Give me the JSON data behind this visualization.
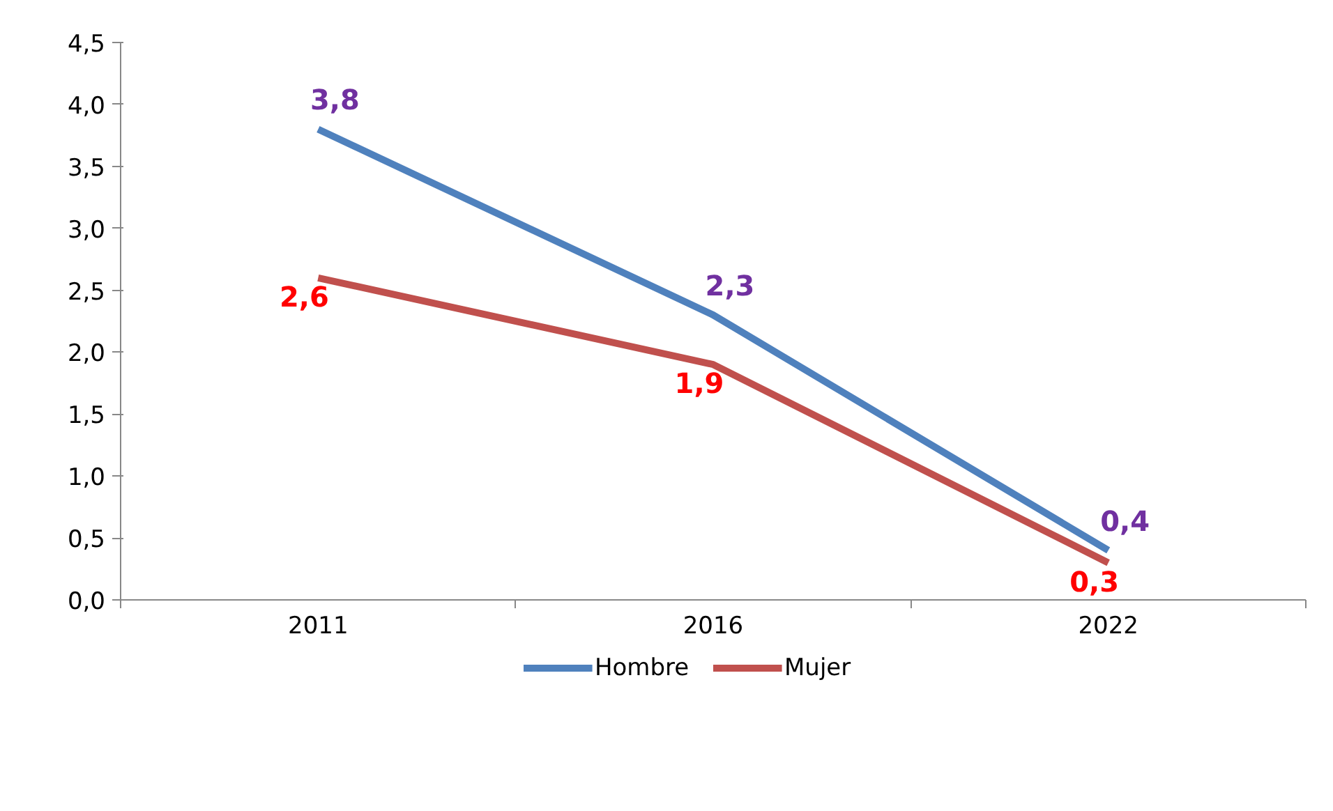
{
  "chart_data": {
    "type": "line",
    "categories": [
      "2011",
      "2016",
      "2022"
    ],
    "series": [
      {
        "name": "Hombre",
        "color": "#4f81bd",
        "values": [
          3.8,
          2.3,
          0.4
        ],
        "value_labels": [
          "3,8",
          "2,3",
          "0,4"
        ]
      },
      {
        "name": "Mujer",
        "color": "#c0504d",
        "values": [
          2.6,
          1.9,
          0.3
        ],
        "value_labels": [
          "2,6",
          "1,9",
          "0,3"
        ]
      }
    ],
    "ylim": [
      0,
      4.5
    ],
    "yticks": [
      {
        "value": 0,
        "label": "0,0"
      },
      {
        "value": 0.5,
        "label": "0,5"
      },
      {
        "value": 1,
        "label": "1,0"
      },
      {
        "value": 1.5,
        "label": "1,5"
      },
      {
        "value": 2,
        "label": "2,0"
      },
      {
        "value": 2.5,
        "label": "2,5"
      },
      {
        "value": 3,
        "label": "3,0"
      },
      {
        "value": 3.5,
        "label": "3,5"
      },
      {
        "value": 4,
        "label": "4,0"
      },
      {
        "value": 4.5,
        "label": "4,5"
      }
    ],
    "grid": false,
    "legend": "bottom",
    "marker": "none",
    "line_style": "solid"
  }
}
